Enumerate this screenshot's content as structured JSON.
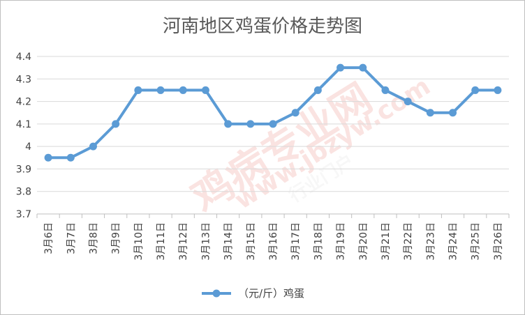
{
  "chart_data": {
    "type": "line",
    "title": "河南地区鸡蛋价格走势图",
    "categories": [
      "3月6日",
      "3月7日",
      "3月8日",
      "3月9日",
      "3月10日",
      "3月11日",
      "3月12日",
      "3月13日",
      "3月14日",
      "3月15日",
      "3月16日",
      "3月17日",
      "3月18日",
      "3月19日",
      "3月20日",
      "3月21日",
      "3月22日",
      "3月23日",
      "3月24日",
      "3月25日",
      "3月26日"
    ],
    "series": [
      {
        "name": "（元/斤）鸡蛋",
        "values": [
          3.95,
          3.95,
          4.0,
          4.1,
          4.25,
          4.25,
          4.25,
          4.25,
          4.1,
          4.1,
          4.1,
          4.15,
          4.25,
          4.35,
          4.35,
          4.25,
          4.2,
          4.15,
          4.15,
          4.25,
          4.25
        ]
      }
    ],
    "ylim": [
      3.7,
      4.4
    ],
    "yticks": [
      "3.7",
      "3.8",
      "3.9",
      "4",
      "4.1",
      "4.2",
      "4.3",
      "4.4"
    ],
    "grid": true,
    "legend": "bottom",
    "line_color": "#5b9bd5"
  },
  "watermark": {
    "text_cn": "鸡病专业网",
    "text_url": "www.jbzyw.com",
    "text_small": "行业门户"
  }
}
